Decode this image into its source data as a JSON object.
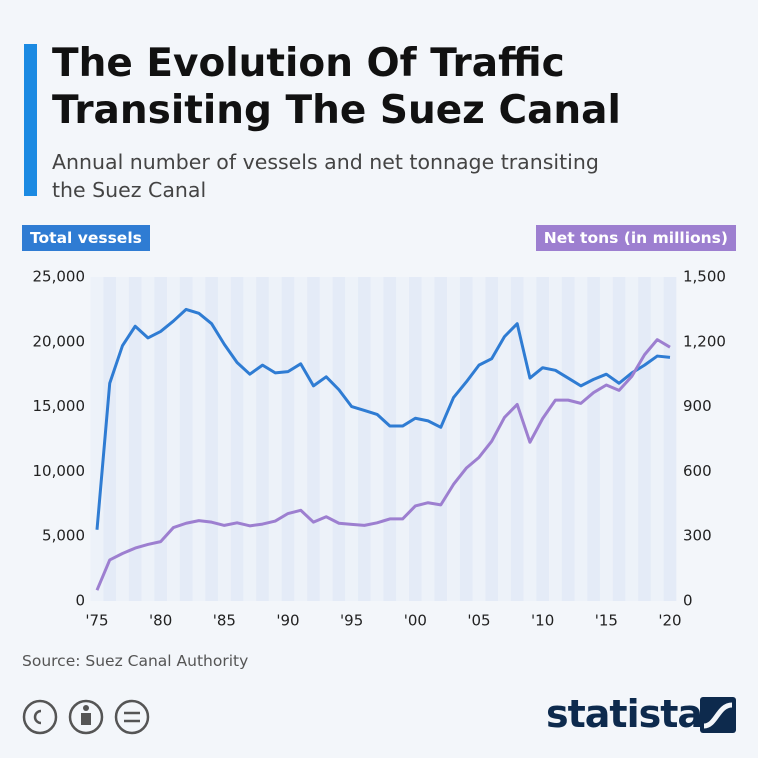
{
  "chart_data": {
    "type": "line",
    "title": "The Evolution Of Traffic Transiting The Suez Canal",
    "subtitle": "Annual number of vessels and net tonnage transiting the Suez Canal",
    "y_label": "Total vessels",
    "y2_label": "Net tons (in millions)",
    "source": "Source: Suez Canal Authority",
    "brand": "statista",
    "x": [
      1975,
      1976,
      1977,
      1978,
      1979,
      1980,
      1981,
      1982,
      1983,
      1984,
      1985,
      1986,
      1987,
      1988,
      1989,
      1990,
      1991,
      1992,
      1993,
      1994,
      1995,
      1996,
      1997,
      1998,
      1999,
      2000,
      2001,
      2002,
      2003,
      2004,
      2005,
      2006,
      2007,
      2008,
      2009,
      2010,
      2011,
      2012,
      2013,
      2014,
      2015,
      2016,
      2017,
      2018,
      2019,
      2020
    ],
    "xlim": [
      1975,
      2020
    ],
    "xticks": [
      {
        "value": 1975,
        "label": "'75"
      },
      {
        "value": 1980,
        "label": "'80"
      },
      {
        "value": 1985,
        "label": "'85"
      },
      {
        "value": 1990,
        "label": "'90"
      },
      {
        "value": 1995,
        "label": "'95"
      },
      {
        "value": 2000,
        "label": "'00"
      },
      {
        "value": 2005,
        "label": "'05"
      },
      {
        "value": 2010,
        "label": "'10"
      },
      {
        "value": 2015,
        "label": "'15"
      },
      {
        "value": 2020,
        "label": "'20"
      }
    ],
    "ylim": [
      0,
      25000
    ],
    "yticks": [
      0,
      {
        "value": 5000,
        "label": "5,000"
      },
      {
        "value": 10000,
        "label": "10,000"
      },
      {
        "value": 15000,
        "label": "15,000"
      },
      {
        "value": 20000,
        "label": "20,000"
      },
      {
        "value": 25000,
        "label": "25,000"
      }
    ],
    "y2lim": [
      0,
      1500
    ],
    "y2ticks": [
      0,
      300,
      600,
      900,
      {
        "value": 1200,
        "label": "1,200"
      },
      {
        "value": 1500,
        "label": "1,500"
      }
    ],
    "series": [
      {
        "name": "Total vessels",
        "color": "#2f7cd3",
        "values": [
          5500,
          16800,
          19700,
          21200,
          20300,
          20800,
          21600,
          22500,
          22200,
          21400,
          19800,
          18400,
          17500,
          18200,
          17600,
          17700,
          18300,
          16600,
          17300,
          16300,
          15000,
          14700,
          14400,
          13500,
          13500,
          14100,
          13900,
          13400,
          15700,
          16900,
          18200,
          18700,
          20400,
          21400,
          17200,
          18000,
          17800,
          17200,
          16600,
          17100,
          17500,
          16800,
          17600,
          18200,
          18900,
          18800
        ]
      },
      {
        "name": "Net tons (in millions)",
        "color": "#9d7fd0",
        "axis": "y2",
        "values": [
          50,
          190,
          220,
          245,
          262,
          275,
          340,
          360,
          372,
          365,
          350,
          362,
          348,
          356,
          370,
          405,
          420,
          365,
          390,
          360,
          355,
          350,
          362,
          380,
          380,
          440,
          455,
          445,
          540,
          615,
          665,
          740,
          850,
          910,
          735,
          845,
          930,
          930,
          915,
          965,
          1000,
          975,
          1040,
          1140,
          1210,
          1175
        ]
      }
    ]
  }
}
